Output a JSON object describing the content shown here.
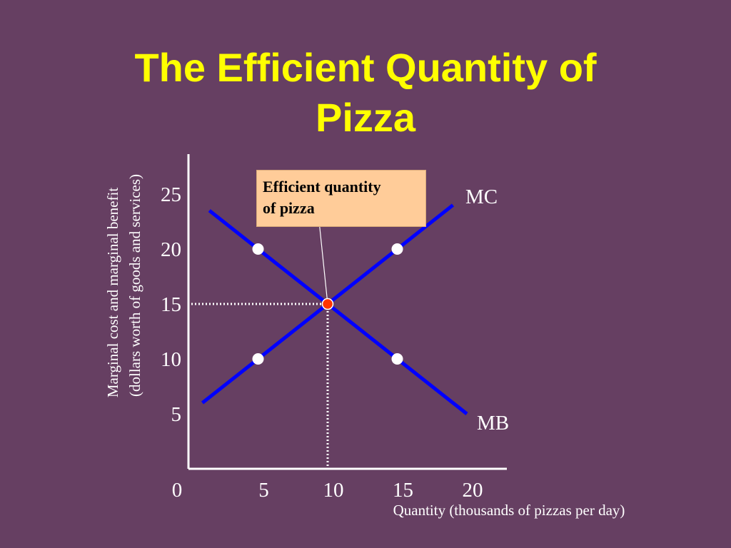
{
  "title": {
    "line1": "The Efficient Quantity of",
    "line2": "Pizza"
  },
  "callout": {
    "line1": "Efficient quantity",
    "line2": "of pizza"
  },
  "colors": {
    "background": "#663f62",
    "title": "#ffff00",
    "curve": "#0000ff",
    "text": "#ffffff",
    "equilibrium_point": "#ff3300",
    "callout_fill": "#ffcc99"
  },
  "chart_data": {
    "type": "line",
    "title": "",
    "xlabel": "Quantity (thousands of pizzas per day)",
    "ylabel": [
      "Marginal cost and marginal benefit",
      "(dollars worth of goods and services)"
    ],
    "xlim": [
      0,
      22
    ],
    "ylim": [
      0,
      28
    ],
    "xticks": [
      "0",
      "5",
      "10",
      "15",
      "20"
    ],
    "yticks": [
      "5",
      "10",
      "15",
      "20",
      "25"
    ],
    "xtick_values": [
      0,
      5,
      10,
      15,
      20
    ],
    "ytick_values": [
      5,
      10,
      15,
      20,
      25
    ],
    "grid": false,
    "series": [
      {
        "name": "MC",
        "color": "#0000ff",
        "x": [
          1,
          19
        ],
        "y": [
          6,
          24
        ],
        "markers": [
          {
            "x": 5,
            "y": 10
          },
          {
            "x": 15,
            "y": 20
          }
        ]
      },
      {
        "name": "MB",
        "color": "#0000ff",
        "x": [
          1.5,
          20
        ],
        "y": [
          23.5,
          5
        ],
        "markers": [
          {
            "x": 5,
            "y": 20
          },
          {
            "x": 15,
            "y": 10
          }
        ]
      }
    ],
    "equilibrium": {
      "x": 10,
      "y": 15
    }
  }
}
